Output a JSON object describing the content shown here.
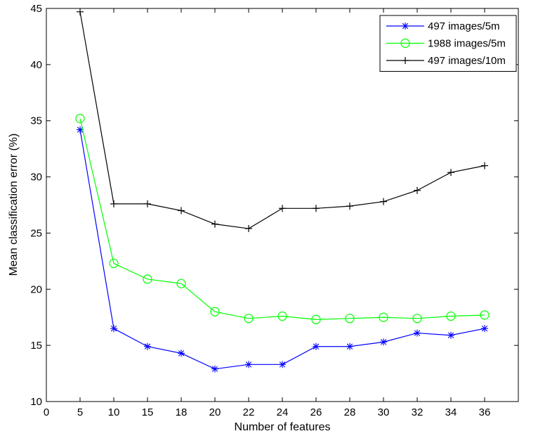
{
  "chart_data": {
    "type": "line",
    "title": "",
    "xlabel": "Number of features",
    "ylabel": "Mean classification error (%)",
    "x": [
      5,
      10,
      15,
      18,
      20,
      22,
      24,
      26,
      28,
      30,
      32,
      34,
      36
    ],
    "x_tick_labels": [
      "0",
      "5",
      "10",
      "15",
      "18",
      "20",
      "22",
      "24",
      "26",
      "28",
      "30",
      "32",
      "34",
      "36"
    ],
    "y_ticks": [
      10,
      15,
      20,
      25,
      30,
      35,
      40,
      45
    ],
    "ylim": [
      10,
      45
    ],
    "grid": false,
    "legend_position": "top-right",
    "series": [
      {
        "name": "497 images/5m",
        "color": "#0000ff",
        "marker": "asterisk",
        "values": [
          34.2,
          16.5,
          14.9,
          14.3,
          12.9,
          13.3,
          13.3,
          14.9,
          14.9,
          15.3,
          16.1,
          15.9,
          16.5
        ]
      },
      {
        "name": "1988 images/5m",
        "color": "#00ff00",
        "marker": "circle",
        "values": [
          35.2,
          22.3,
          20.9,
          20.5,
          18.0,
          17.4,
          17.6,
          17.3,
          17.4,
          17.5,
          17.4,
          17.6,
          17.7
        ]
      },
      {
        "name": "497 images/10m",
        "color": "#000000",
        "marker": "plus",
        "values": [
          44.7,
          27.6,
          27.6,
          27.0,
          25.8,
          25.4,
          27.2,
          27.2,
          27.4,
          27.8,
          28.8,
          30.4,
          31.0
        ]
      }
    ]
  }
}
